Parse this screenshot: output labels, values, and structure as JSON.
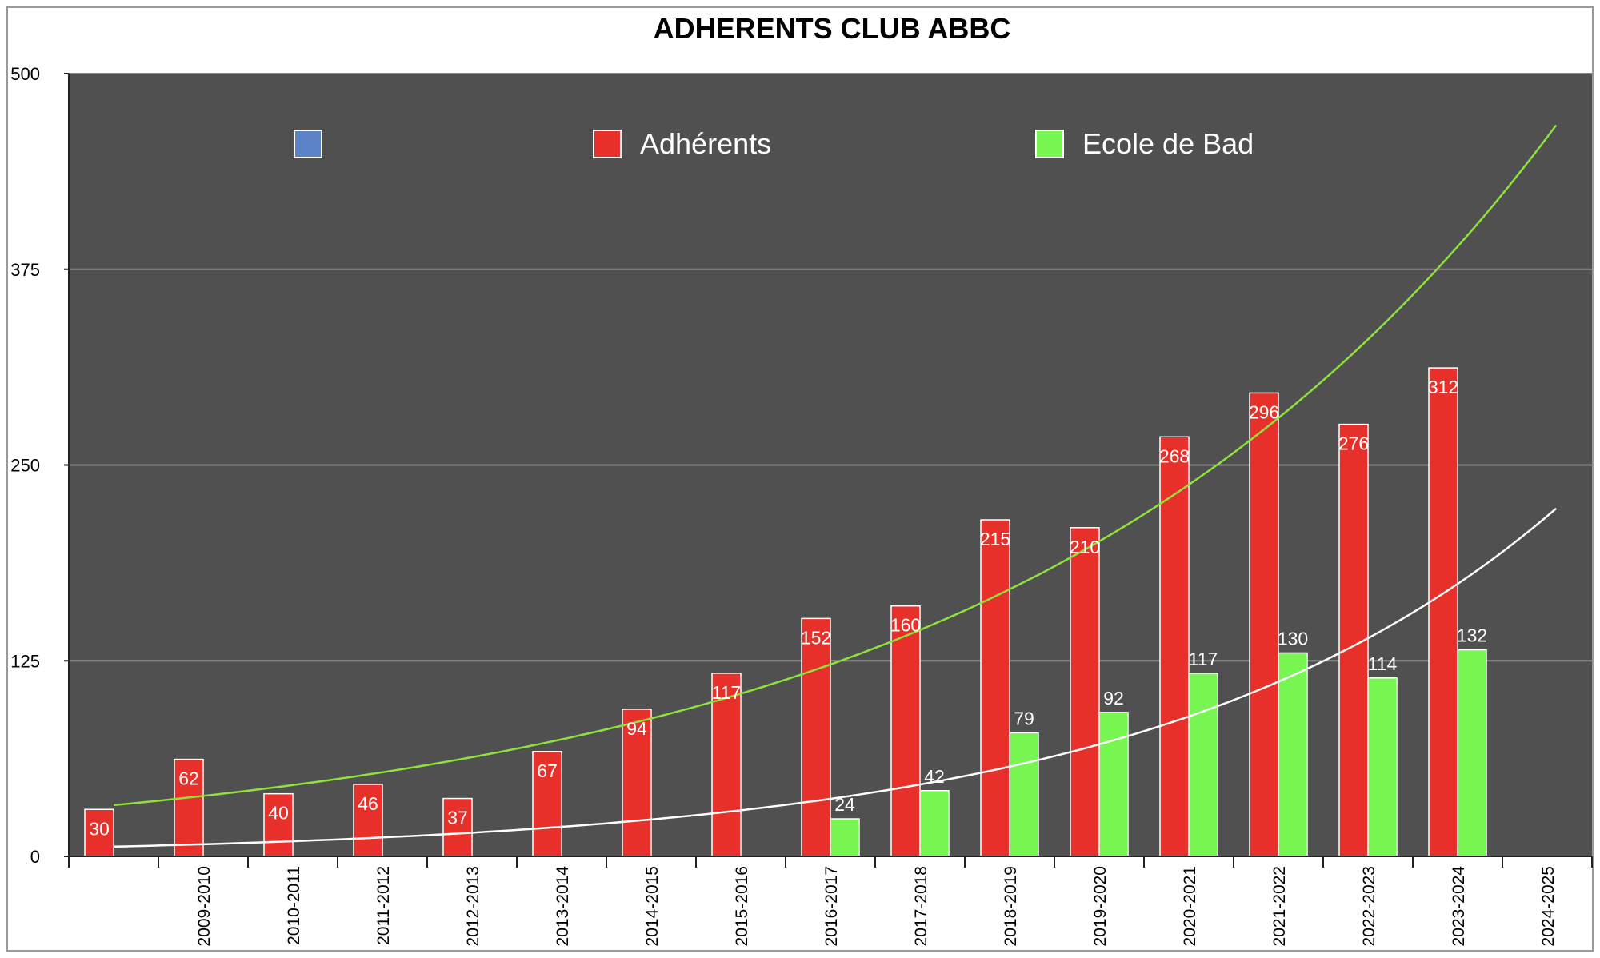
{
  "chart_data": {
    "type": "bar",
    "title": "ADHERENTS CLUB ABBC",
    "xlabel": "",
    "ylabel": "",
    "ylim": [
      0,
      500
    ],
    "yticks": [
      0,
      125,
      250,
      375,
      500
    ],
    "grid": true,
    "legend_position": "top",
    "categories": [
      "",
      "2009-2010",
      "2010-2011",
      "2011-2012",
      "2012-2013",
      "2013-2014",
      "2014-2015",
      "2015-2016",
      "2016-2017",
      "2017-2018",
      "2018-2019",
      "2019-2020",
      "2020-2021",
      "2021-2022",
      "2022-2023",
      "2023-2024",
      "2024-2025"
    ],
    "series": [
      {
        "name": "",
        "color": "#5b82c6",
        "values": [
          null,
          null,
          null,
          null,
          null,
          null,
          null,
          null,
          null,
          null,
          null,
          null,
          null,
          null,
          null,
          null,
          null
        ]
      },
      {
        "name": "Adhérents",
        "color": "#e8302a",
        "values": [
          30,
          62,
          40,
          46,
          37,
          67,
          94,
          117,
          152,
          160,
          215,
          210,
          268,
          296,
          276,
          312,
          null
        ]
      },
      {
        "name": "Ecole de Bad",
        "color": "#77f551",
        "values": [
          null,
          null,
          null,
          null,
          null,
          null,
          null,
          null,
          24,
          42,
          79,
          92,
          117,
          130,
          114,
          132,
          null
        ]
      }
    ],
    "trendlines": [
      {
        "of": "Adhérents",
        "type": "exponential",
        "color": "#8fe13c"
      },
      {
        "of": "Ecole de Bad",
        "type": "exponential",
        "color": "#ffffff"
      }
    ],
    "colors": {
      "plot_background": "#505050",
      "gridline": "#8a8a8a",
      "label_text": "#ffffff"
    }
  }
}
